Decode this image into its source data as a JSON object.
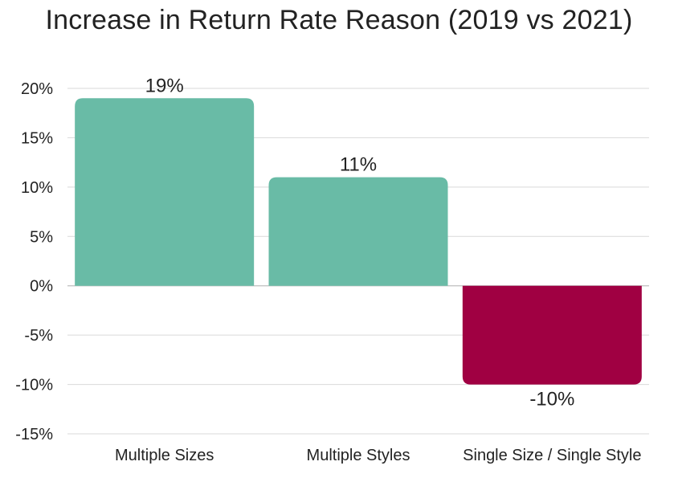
{
  "chart_data": {
    "type": "bar",
    "title": "Increase in Return Rate Reason (2019 vs 2021)",
    "categories": [
      "Multiple Sizes",
      "Multiple Styles",
      "Single Size / Single Style"
    ],
    "values": [
      19,
      11,
      -10
    ],
    "data_labels": [
      "19%",
      "11%",
      "-10%"
    ],
    "y_ticks": [
      20,
      15,
      10,
      5,
      0,
      -5,
      -10,
      -15
    ],
    "y_tick_labels": [
      "20%",
      "15%",
      "10%",
      "5%",
      "0%",
      "-5%",
      "-10%",
      "-15%"
    ],
    "ylim": [
      -15,
      20
    ],
    "xlabel": "",
    "ylabel": "",
    "grid": true,
    "legend": "none",
    "colors": {
      "positive": "#69BBA6",
      "negative": "#A00042",
      "grid": "#D9D9D9",
      "zero_line": "#BFBFBF"
    }
  }
}
